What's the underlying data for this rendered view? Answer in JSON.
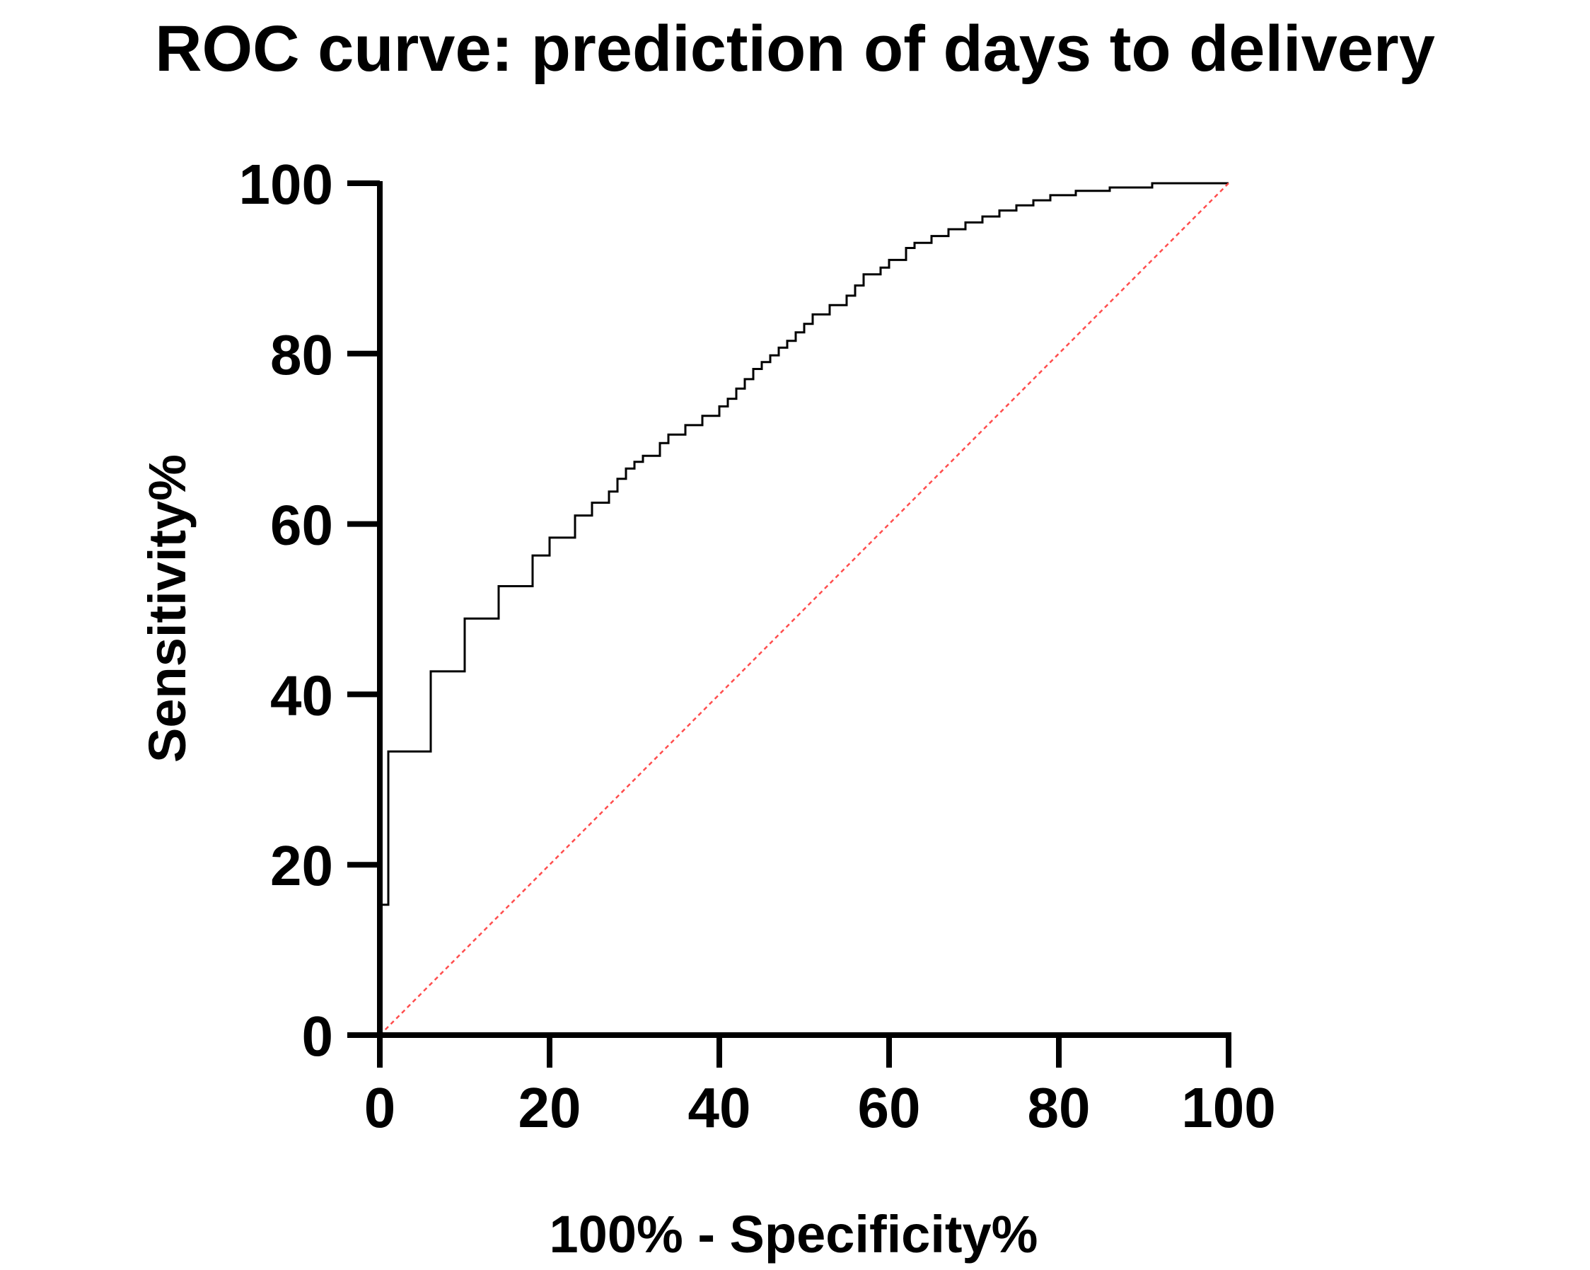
{
  "chart_data": {
    "type": "line",
    "title": "ROC curve: prediction of days to delivery",
    "xlabel": "100%  - Specificity%",
    "ylabel": "Sensitivity%",
    "xlim": [
      0,
      100
    ],
    "ylim": [
      0,
      100
    ],
    "x_ticks": [
      0,
      20,
      40,
      60,
      80,
      100
    ],
    "y_ticks": [
      0,
      20,
      40,
      60,
      80,
      100
    ],
    "x_tick_labels": [
      "0",
      "20",
      "40",
      "60",
      "80",
      "100"
    ],
    "y_tick_labels": [
      "0",
      "20",
      "40",
      "60",
      "80",
      "100"
    ],
    "grid": false,
    "legend": "none",
    "series": [
      {
        "style": "step",
        "color": "#000000",
        "x": [
          0,
          0,
          1,
          1,
          6,
          6,
          10,
          10,
          14,
          14,
          18,
          18,
          20,
          20,
          23,
          23,
          25,
          25,
          27,
          27,
          28,
          28,
          29,
          29,
          30,
          30,
          31,
          31,
          33,
          33,
          34,
          34,
          36,
          36,
          38,
          38,
          40,
          40,
          41,
          41,
          42,
          42,
          43,
          43,
          44,
          44,
          45,
          45,
          46,
          46,
          47,
          47,
          48,
          48,
          49,
          49,
          50,
          50,
          51,
          51,
          53,
          53,
          55,
          55,
          56,
          56,
          57,
          57,
          59,
          59,
          60,
          60,
          62,
          62,
          63,
          63,
          65,
          65,
          67,
          67,
          69,
          69,
          71,
          71,
          73,
          73,
          75,
          75,
          77,
          77,
          79,
          79,
          82,
          82,
          86,
          86,
          91,
          91,
          100
        ],
        "y": [
          0,
          15.3,
          15.3,
          33.3,
          33.3,
          42.7,
          42.7,
          48.9,
          48.9,
          52.7,
          52.7,
          56.3,
          56.3,
          58.4,
          58.4,
          61.0,
          61.0,
          62.5,
          62.5,
          63.8,
          63.8,
          65.3,
          65.3,
          66.5,
          66.5,
          67.3,
          67.3,
          68.0,
          68.0,
          69.5,
          69.5,
          70.5,
          70.5,
          71.6,
          71.6,
          72.7,
          72.7,
          73.8,
          73.8,
          74.7,
          74.7,
          75.9,
          75.9,
          77.0,
          77.0,
          78.2,
          78.2,
          79.0,
          79.0,
          79.8,
          79.8,
          80.7,
          80.7,
          81.5,
          81.5,
          82.5,
          82.5,
          83.5,
          83.5,
          84.6,
          84.6,
          85.7,
          85.7,
          86.8,
          86.8,
          88.0,
          88.0,
          89.3,
          89.3,
          90.1,
          90.1,
          91.0,
          91.0,
          92.4,
          92.4,
          93.0,
          93.0,
          93.8,
          93.8,
          94.6,
          94.6,
          95.4,
          95.4,
          96.1,
          96.1,
          96.8,
          96.8,
          97.4,
          97.4,
          98.0,
          98.0,
          98.6,
          98.6,
          99.1,
          99.1,
          99.5,
          99.5,
          100,
          100
        ]
      },
      {
        "style": "dotted",
        "color": "#ff4d4d",
        "x": [
          0,
          100
        ],
        "y": [
          0,
          100
        ]
      }
    ]
  }
}
